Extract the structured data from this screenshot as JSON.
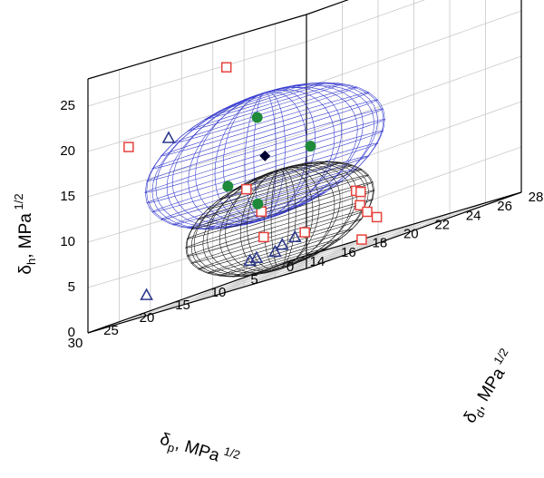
{
  "chart_data": {
    "type": "scatter3d",
    "axes": {
      "x": {
        "label_symbol": "δ",
        "label_sub": "d",
        "label_unit": "MPa",
        "label_sup": "1/2",
        "range": [
          14,
          28
        ],
        "ticks": [
          "14",
          "16",
          "18",
          "20",
          "22",
          "24",
          "26",
          "28"
        ]
      },
      "y": {
        "label_symbol": "δ",
        "label_sub": "p",
        "label_unit": "MPa",
        "label_sup": "1/2",
        "range": [
          0,
          30
        ],
        "ticks": [
          "0",
          "5",
          "10",
          "15",
          "20",
          "25",
          "30"
        ]
      },
      "z": {
        "label_symbol": "δ",
        "label_sub": "h",
        "label_unit": "MPa",
        "label_sup": "1/2",
        "range": [
          0,
          28
        ],
        "ticks": [
          "0",
          "5",
          "10",
          "15",
          "20",
          "25"
        ]
      }
    },
    "grid": true,
    "colors": {
      "red_square": "#e8423c",
      "blue_triangle": "#2d3a8c",
      "green_circle": "#1f8a3a",
      "diamond": "#000030",
      "sphere_large": "#3a3fcf",
      "sphere_small": "#1a1a1a"
    },
    "series": [
      {
        "marker": "square",
        "color": "#e8423c",
        "points": [
          [
            15.3,
            13.5,
            24.0
          ],
          [
            15.0,
            26.5,
            19.0
          ],
          [
            17.5,
            15.5,
            10.0
          ],
          [
            18.0,
            14.5,
            7.0
          ],
          [
            17.0,
            12.0,
            4.0
          ],
          [
            22.0,
            10.0,
            6.0
          ],
          [
            17.8,
            8.0,
            3.0
          ],
          [
            20.0,
            5.0,
            5.5
          ],
          [
            19.5,
            4.0,
            4.0
          ],
          [
            19.5,
            3.0,
            3.0
          ],
          [
            19.2,
            1.0,
            2.0
          ],
          [
            18.0,
            0.5,
            0.0
          ]
        ]
      },
      {
        "marker": "triangle",
        "color": "#2d3a8c",
        "points": [
          [
            15.5,
            22.0,
            18.5
          ],
          [
            15.0,
            24.0,
            2.0
          ],
          [
            17.5,
            15.0,
            2.0
          ],
          [
            17.0,
            13.0,
            2.0
          ],
          [
            19.0,
            12.0,
            3.0
          ],
          [
            17.5,
            10.5,
            2.5
          ],
          [
            17.5,
            11.5,
            2.0
          ]
        ]
      },
      {
        "marker": "circle",
        "color": "#1f8a3a",
        "points": [
          [
            17.5,
            14.0,
            17.5
          ],
          [
            20.0,
            12.0,
            12.5
          ],
          [
            17.0,
            17.0,
            11.0
          ],
          [
            18.0,
            15.0,
            8.0
          ]
        ]
      },
      {
        "marker": "diamond",
        "color": "#000030",
        "points": [
          [
            18.0,
            14.0,
            13.0
          ]
        ]
      }
    ],
    "spheres": [
      {
        "center": [
          18.0,
          14.0,
          13.0
        ],
        "radius": 7.0,
        "color": "#3a3fcf"
      },
      {
        "center": [
          18.5,
          13.0,
          5.5
        ],
        "radius": 5.5,
        "color": "#1a1a1a"
      }
    ]
  }
}
